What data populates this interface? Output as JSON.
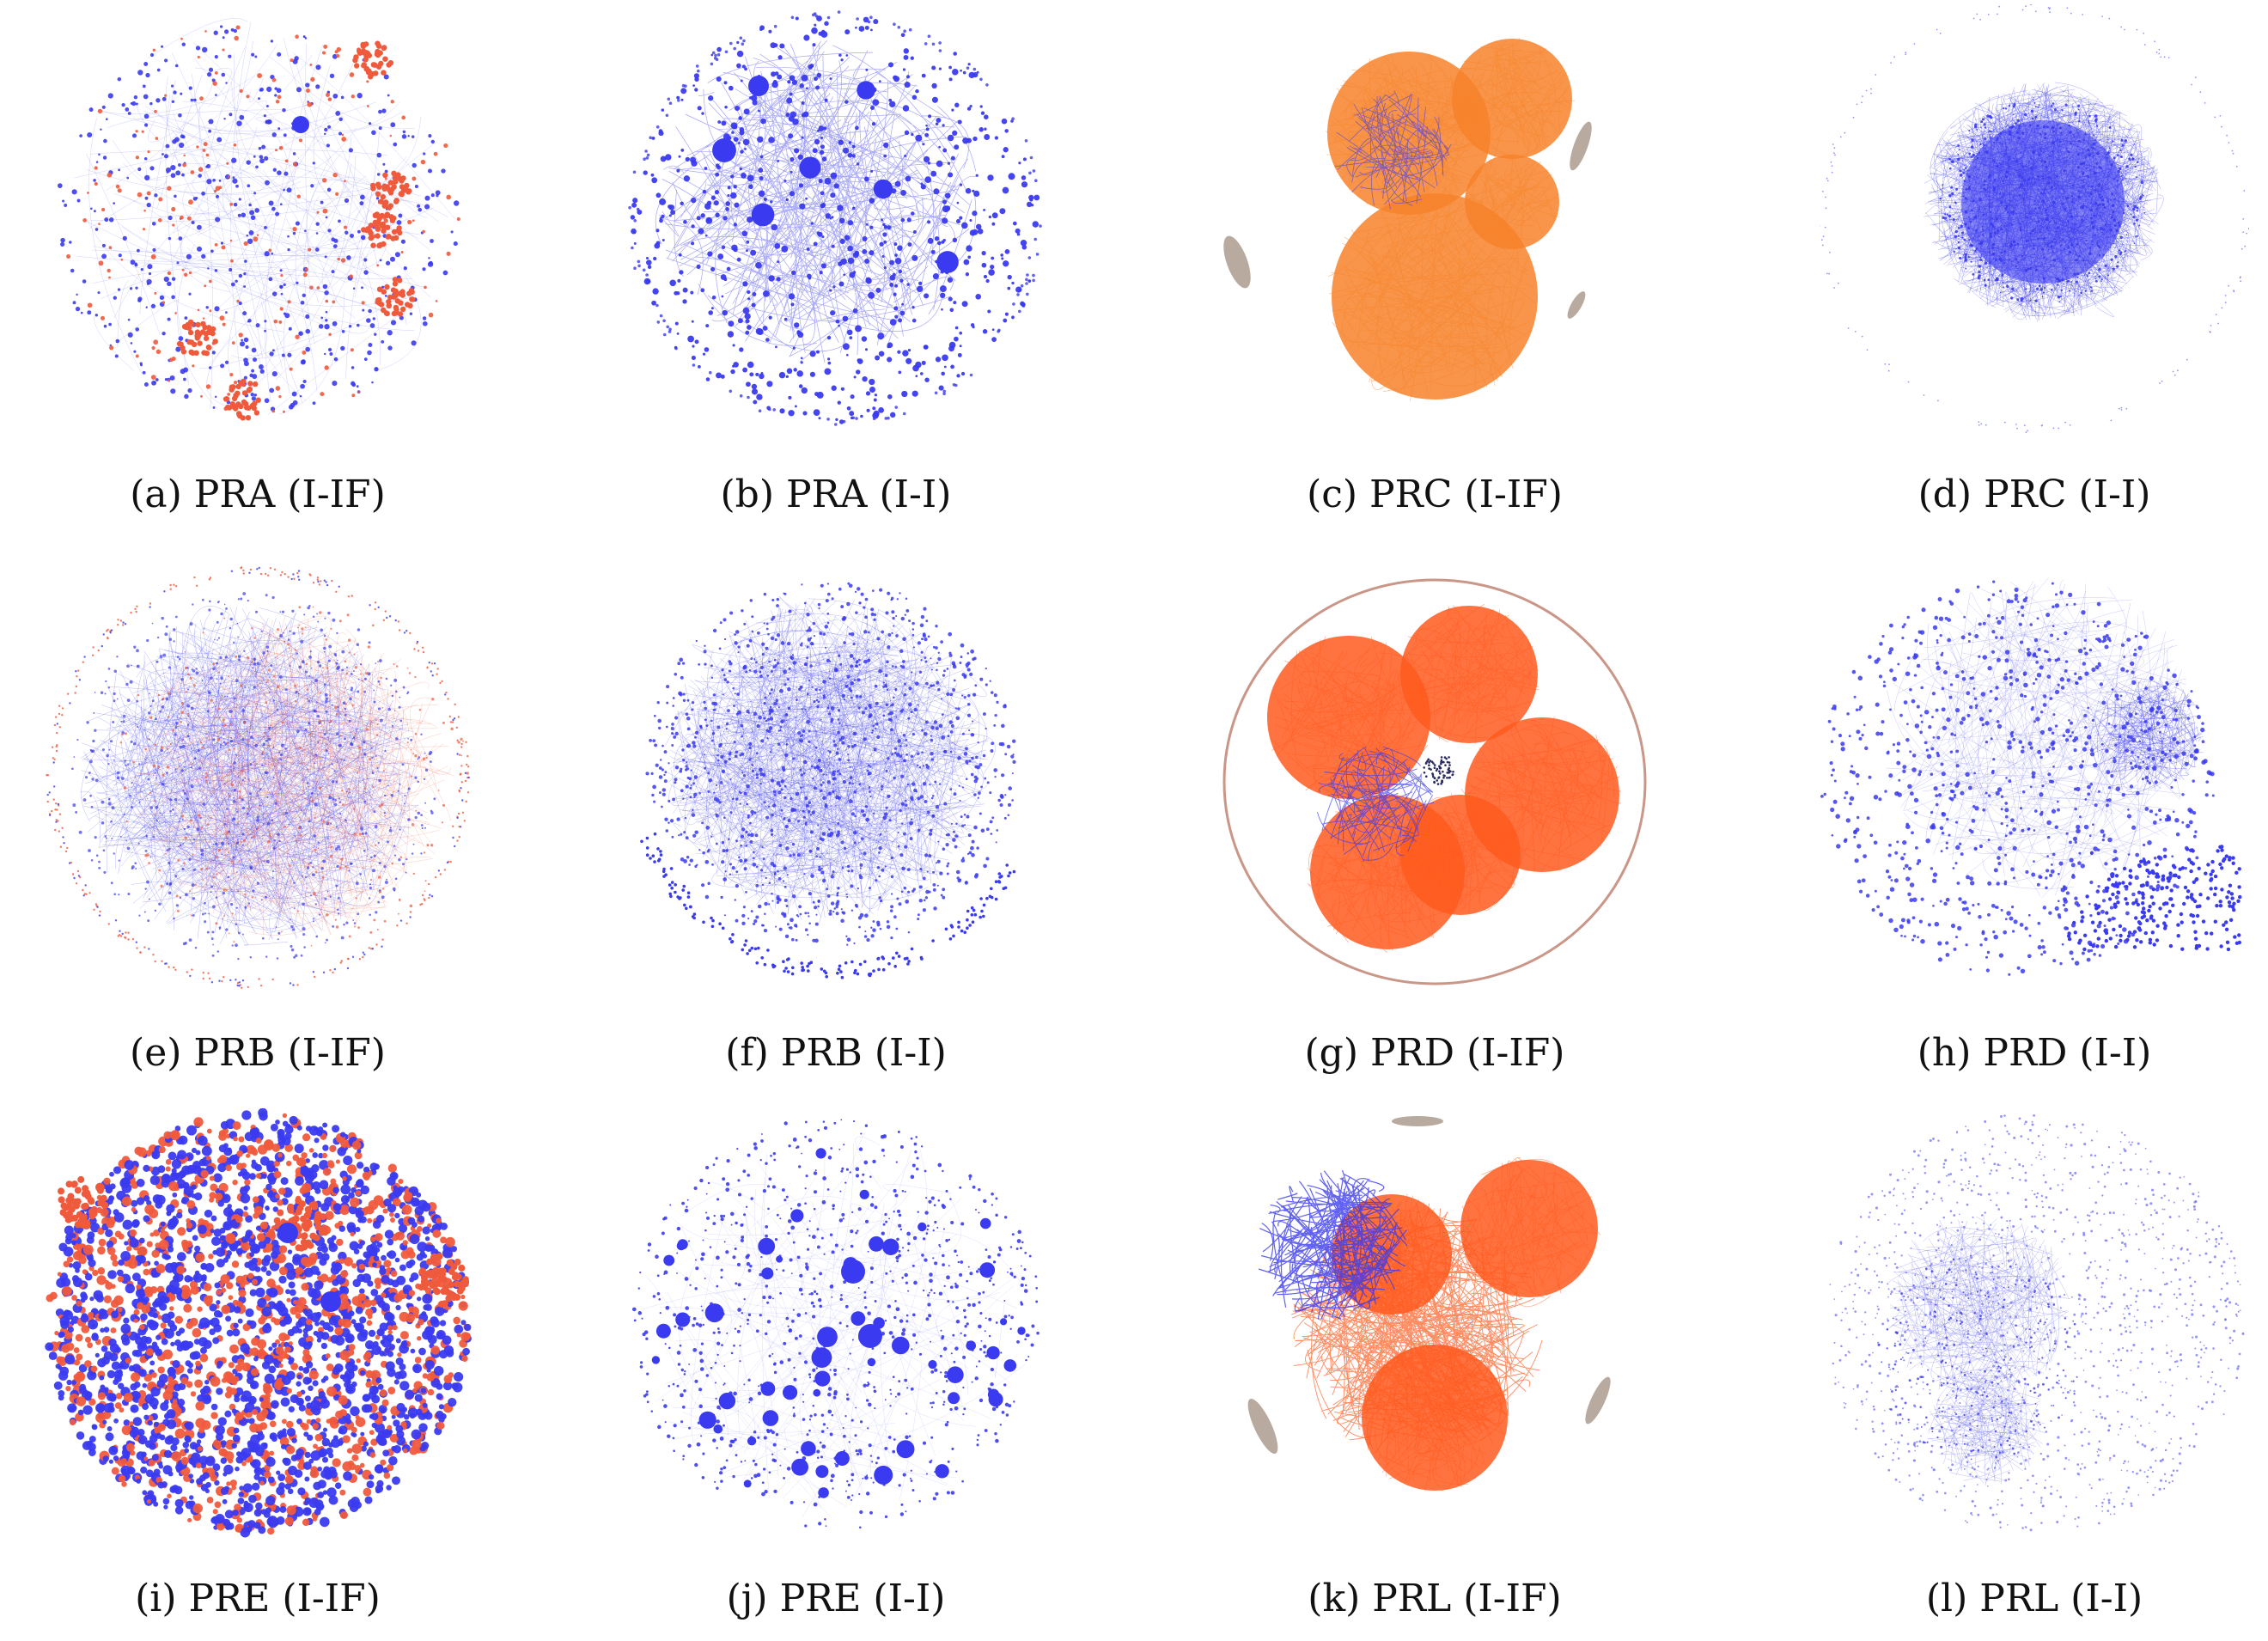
{
  "colors": {
    "blue": "#3a3af0",
    "red": "#f05a3c",
    "orange": "#f7832a",
    "red_orange": "#ff5a1e",
    "gray": "#b8aa9e",
    "edge_blue": "#7a7af5"
  },
  "panels": [
    {
      "caption": "(a) PRA (I-IF)",
      "style": "mixed-clusters"
    },
    {
      "caption": "(b) PRA (I-I)",
      "style": "blue-network"
    },
    {
      "caption": "(c) PRC (I-IF)",
      "style": "orange-blobs"
    },
    {
      "caption": "(d) PRC (I-I)",
      "style": "dense-blue-core"
    },
    {
      "caption": "(e) PRB (I-IF)",
      "style": "mixed-hairball"
    },
    {
      "caption": "(f) PRB (I-I)",
      "style": "blue-hairball"
    },
    {
      "caption": "(g) PRD (I-IF)",
      "style": "red-blobs-ring"
    },
    {
      "caption": "(h) PRD (I-I)",
      "style": "blue-sparse"
    },
    {
      "caption": "(i) PRE (I-IF)",
      "style": "dense-disc"
    },
    {
      "caption": "(j) PRE (I-I)",
      "style": "blue-bubbles"
    },
    {
      "caption": "(k) PRL (I-IF)",
      "style": "red-blobs-blue-tangle"
    },
    {
      "caption": "(l) PRL (I-I)",
      "style": "blue-faint"
    }
  ]
}
